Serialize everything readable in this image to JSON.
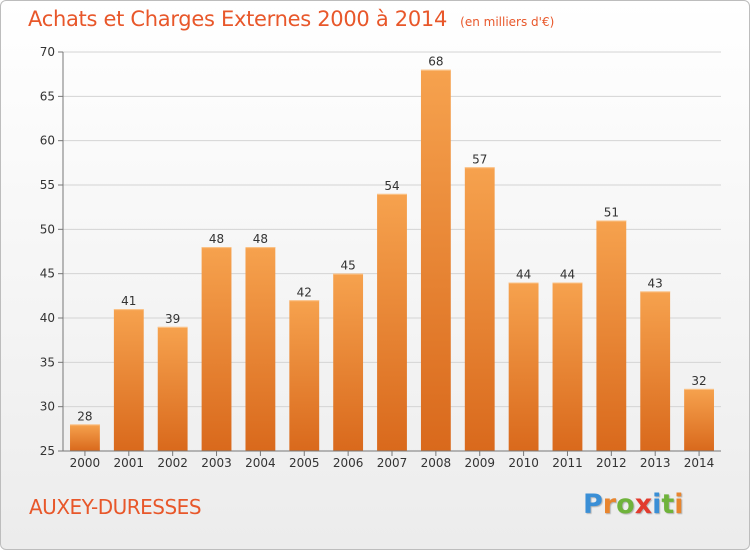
{
  "chart_data": {
    "type": "bar",
    "title": "Achats et Charges Externes 2000 à 2014",
    "subtitle": "(en milliers d'€)",
    "categories": [
      "2000",
      "2001",
      "2002",
      "2003",
      "2004",
      "2005",
      "2006",
      "2007",
      "2008",
      "2009",
      "2010",
      "2011",
      "2012",
      "2013",
      "2014"
    ],
    "values": [
      28,
      41,
      39,
      48,
      48,
      42,
      45,
      54,
      68,
      57,
      44,
      44,
      51,
      43,
      32
    ],
    "ylim": [
      25,
      70
    ],
    "yticks": [
      25,
      30,
      35,
      40,
      45,
      50,
      55,
      60,
      65,
      70
    ],
    "grid": true,
    "bar_color": "#e8852e"
  },
  "footer": {
    "commune": "AUXEY-DURESSES",
    "brand_letters": [
      "P",
      "r",
      "o",
      "x",
      "i",
      "t",
      "i"
    ],
    "brand_colors": [
      "#3a8fd6",
      "#e8852e",
      "#6fb33b",
      "#e23b2e",
      "#3a8fd6",
      "#6fb33b",
      "#e8852e"
    ]
  }
}
